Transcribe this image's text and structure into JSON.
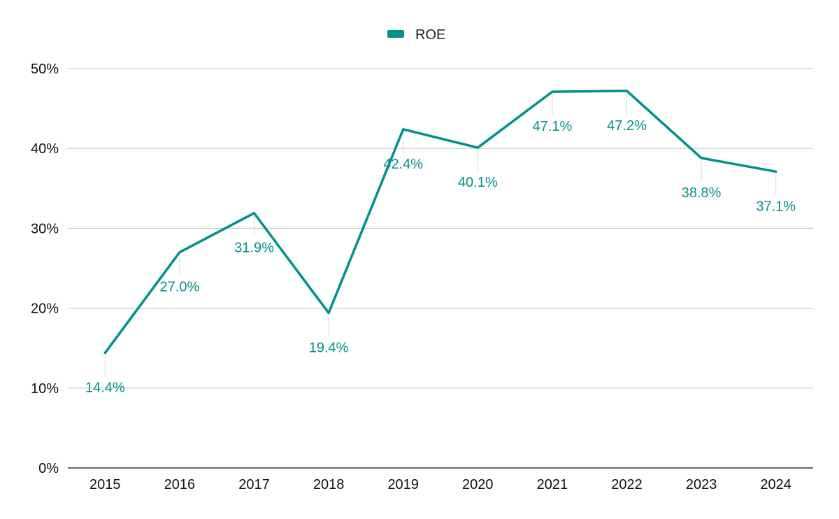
{
  "chart_data": {
    "type": "line",
    "categories": [
      "2015",
      "2016",
      "2017",
      "2018",
      "2019",
      "2020",
      "2021",
      "2022",
      "2023",
      "2024"
    ],
    "series": [
      {
        "name": "ROE",
        "values": [
          14.4,
          27.0,
          31.9,
          19.4,
          42.4,
          40.1,
          47.1,
          47.2,
          38.8,
          37.1
        ],
        "data_labels": [
          "14.4%",
          "27.0%",
          "31.9%",
          "19.4%",
          "42.4%",
          "40.1%",
          "47.1%",
          "47.2%",
          "38.8%",
          "37.1%"
        ]
      }
    ],
    "ylim": [
      0,
      50
    ],
    "yticks": [
      0,
      10,
      20,
      30,
      40,
      50
    ],
    "ytick_labels": [
      "0%",
      "10%",
      "20%",
      "30%",
      "40%",
      "50%"
    ],
    "grid": true,
    "legend_position": "top-center",
    "colors": {
      "line": "#00918a",
      "grid": "#cccccc",
      "axis": "#333333",
      "label": "#00918a"
    }
  }
}
